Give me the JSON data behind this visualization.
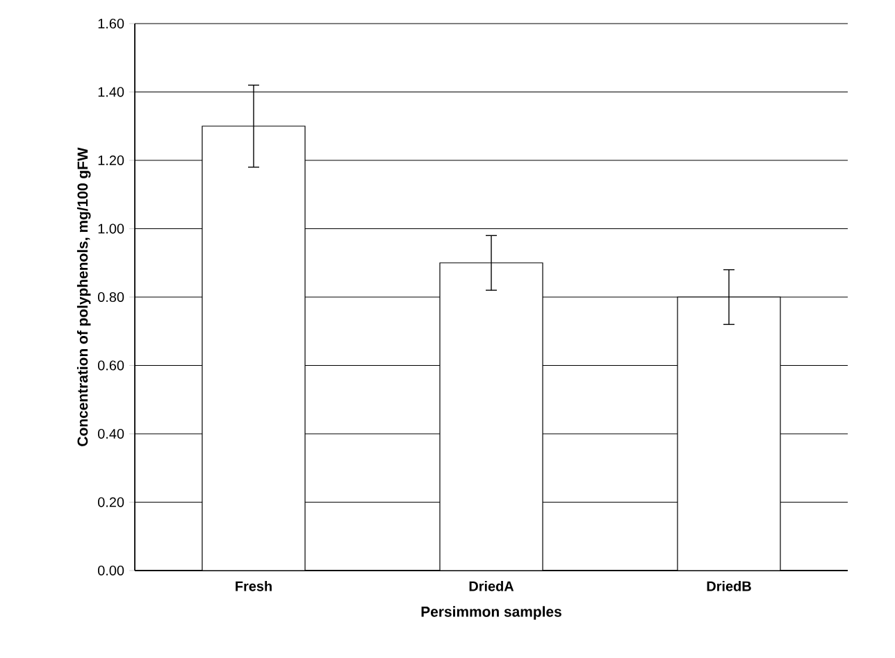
{
  "chart_data": {
    "type": "bar",
    "xlabel": "Persimmon samples",
    "ylabel": "Concentration of polyphenols, mg/100 gFW",
    "categories": [
      "Fresh",
      "DriedA",
      "DriedB"
    ],
    "values": [
      1.3,
      0.9,
      0.8
    ],
    "errors": [
      0.12,
      0.08,
      0.08
    ],
    "color": "#ffffff",
    "ylim": [
      0,
      1.6
    ],
    "yticks": [
      {
        "value": 0,
        "label": "0.00"
      },
      {
        "value": 0.2,
        "label": "0.20"
      },
      {
        "value": 0.4,
        "label": "0.40"
      },
      {
        "value": 0.6,
        "label": "0.60"
      },
      {
        "value": 0.8,
        "label": "0.80"
      },
      {
        "value": 1.0,
        "label": "1.00"
      },
      {
        "value": 1.2,
        "label": "1.20"
      },
      {
        "value": 1.4,
        "label": "1.40"
      },
      {
        "value": 1.6,
        "label": "1.60"
      }
    ],
    "grid": "y"
  }
}
